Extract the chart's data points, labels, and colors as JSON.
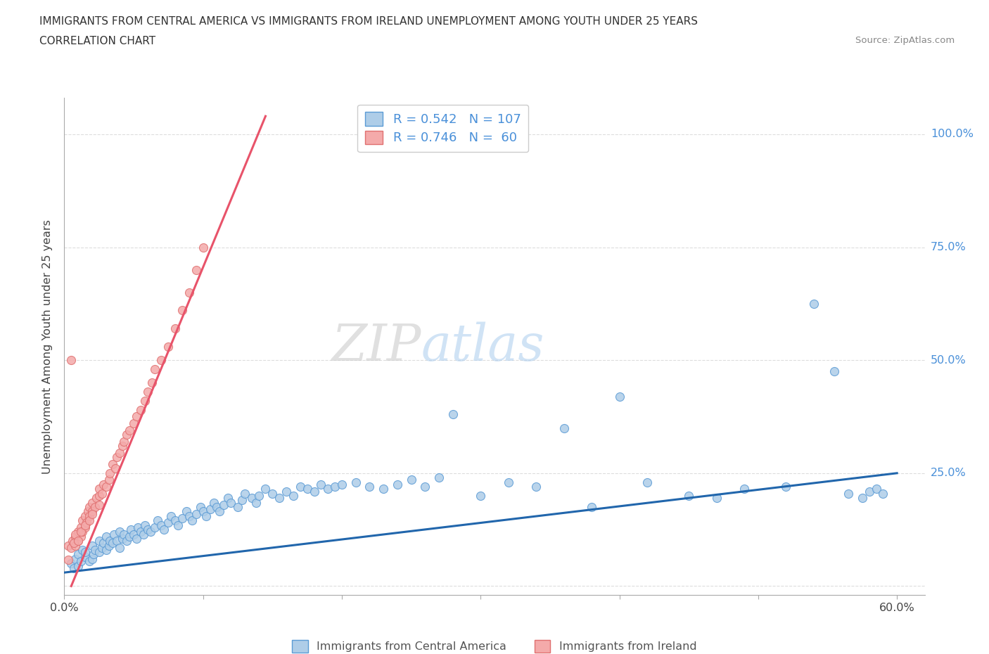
{
  "title_line1": "IMMIGRANTS FROM CENTRAL AMERICA VS IMMIGRANTS FROM IRELAND UNEMPLOYMENT AMONG YOUTH UNDER 25 YEARS",
  "title_line2": "CORRELATION CHART",
  "source_text": "Source: ZipAtlas.com",
  "ylabel": "Unemployment Among Youth under 25 years",
  "xlim": [
    0.0,
    0.62
  ],
  "ylim": [
    -0.02,
    1.08
  ],
  "xtick_positions": [
    0.0,
    0.1,
    0.2,
    0.3,
    0.4,
    0.5,
    0.6
  ],
  "xticklabels": [
    "0.0%",
    "",
    "",
    "",
    "",
    "",
    "60.0%"
  ],
  "ytick_positions": [
    0.0,
    0.25,
    0.5,
    0.75,
    1.0
  ],
  "ytick_right_labels": [
    "",
    "25.0%",
    "50.0%",
    "75.0%",
    "100.0%"
  ],
  "watermark_zip": "ZIP",
  "watermark_atlas": "atlas",
  "blue_color": "#aecde8",
  "blue_edge_color": "#5b9bd5",
  "blue_line_color": "#2166ac",
  "pink_color": "#f4aaaa",
  "pink_edge_color": "#e07070",
  "pink_line_color": "#e8536a",
  "right_label_color": "#4a90d9",
  "legend_blue_label": "R = 0.542   N = 107",
  "legend_pink_label": "R = 0.746   N =  60",
  "legend_bottom_blue": "Immigrants from Central America",
  "legend_bottom_pink": "Immigrants from Ireland",
  "blue_trendline_x": [
    0.0,
    0.6
  ],
  "blue_trendline_y": [
    0.03,
    0.25
  ],
  "pink_trendline_x": [
    0.005,
    0.145
  ],
  "pink_trendline_y": [
    0.0,
    1.04
  ],
  "blue_scatter_x": [
    0.005,
    0.007,
    0.008,
    0.01,
    0.01,
    0.012,
    0.013,
    0.015,
    0.015,
    0.018,
    0.02,
    0.02,
    0.021,
    0.022,
    0.025,
    0.025,
    0.027,
    0.028,
    0.03,
    0.03,
    0.032,
    0.033,
    0.035,
    0.036,
    0.038,
    0.04,
    0.04,
    0.042,
    0.043,
    0.045,
    0.047,
    0.048,
    0.05,
    0.052,
    0.053,
    0.055,
    0.057,
    0.058,
    0.06,
    0.062,
    0.065,
    0.067,
    0.07,
    0.072,
    0.075,
    0.077,
    0.08,
    0.082,
    0.085,
    0.088,
    0.09,
    0.092,
    0.095,
    0.098,
    0.1,
    0.102,
    0.105,
    0.108,
    0.11,
    0.112,
    0.115,
    0.118,
    0.12,
    0.125,
    0.128,
    0.13,
    0.135,
    0.138,
    0.14,
    0.145,
    0.15,
    0.155,
    0.16,
    0.165,
    0.17,
    0.175,
    0.18,
    0.185,
    0.19,
    0.195,
    0.2,
    0.21,
    0.22,
    0.23,
    0.24,
    0.25,
    0.26,
    0.27,
    0.28,
    0.3,
    0.32,
    0.34,
    0.36,
    0.38,
    0.4,
    0.42,
    0.45,
    0.47,
    0.49,
    0.52,
    0.54,
    0.555,
    0.565,
    0.575,
    0.58,
    0.585,
    0.59
  ],
  "blue_scatter_y": [
    0.05,
    0.04,
    0.06,
    0.045,
    0.07,
    0.055,
    0.08,
    0.065,
    0.075,
    0.055,
    0.06,
    0.09,
    0.07,
    0.08,
    0.075,
    0.1,
    0.085,
    0.095,
    0.08,
    0.11,
    0.09,
    0.1,
    0.095,
    0.115,
    0.1,
    0.085,
    0.12,
    0.105,
    0.115,
    0.1,
    0.11,
    0.125,
    0.115,
    0.105,
    0.13,
    0.12,
    0.115,
    0.135,
    0.125,
    0.12,
    0.13,
    0.145,
    0.135,
    0.125,
    0.14,
    0.155,
    0.145,
    0.135,
    0.15,
    0.165,
    0.155,
    0.145,
    0.16,
    0.175,
    0.165,
    0.155,
    0.17,
    0.185,
    0.175,
    0.165,
    0.18,
    0.195,
    0.185,
    0.175,
    0.19,
    0.205,
    0.195,
    0.185,
    0.2,
    0.215,
    0.205,
    0.195,
    0.21,
    0.2,
    0.22,
    0.215,
    0.21,
    0.225,
    0.215,
    0.22,
    0.225,
    0.23,
    0.22,
    0.215,
    0.225,
    0.235,
    0.22,
    0.24,
    0.38,
    0.2,
    0.23,
    0.22,
    0.35,
    0.175,
    0.42,
    0.23,
    0.2,
    0.195,
    0.215,
    0.22,
    0.625,
    0.475,
    0.205,
    0.195,
    0.21,
    0.215,
    0.205
  ],
  "pink_scatter_x": [
    0.003,
    0.005,
    0.006,
    0.008,
    0.008,
    0.01,
    0.01,
    0.012,
    0.012,
    0.013,
    0.013,
    0.015,
    0.015,
    0.016,
    0.017,
    0.018,
    0.018,
    0.02,
    0.02,
    0.022,
    0.023,
    0.025,
    0.025,
    0.027,
    0.028,
    0.03,
    0.032,
    0.033,
    0.035,
    0.037,
    0.038,
    0.04,
    0.042,
    0.043,
    0.045,
    0.047,
    0.05,
    0.052,
    0.055,
    0.058,
    0.06,
    0.063,
    0.065,
    0.07,
    0.075,
    0.08,
    0.085,
    0.09,
    0.095,
    0.1,
    0.003,
    0.005,
    0.007,
    0.008,
    0.01,
    0.012,
    0.015,
    0.018,
    0.02,
    0.025
  ],
  "pink_scatter_y": [
    0.09,
    0.085,
    0.1,
    0.09,
    0.11,
    0.1,
    0.12,
    0.11,
    0.13,
    0.12,
    0.145,
    0.13,
    0.155,
    0.14,
    0.165,
    0.155,
    0.175,
    0.165,
    0.185,
    0.175,
    0.195,
    0.2,
    0.215,
    0.205,
    0.225,
    0.22,
    0.235,
    0.25,
    0.27,
    0.26,
    0.285,
    0.295,
    0.31,
    0.32,
    0.335,
    0.345,
    0.36,
    0.375,
    0.39,
    0.41,
    0.43,
    0.45,
    0.48,
    0.5,
    0.53,
    0.57,
    0.61,
    0.65,
    0.7,
    0.75,
    0.058,
    0.5,
    0.095,
    0.115,
    0.1,
    0.12,
    0.135,
    0.145,
    0.16,
    0.18
  ]
}
